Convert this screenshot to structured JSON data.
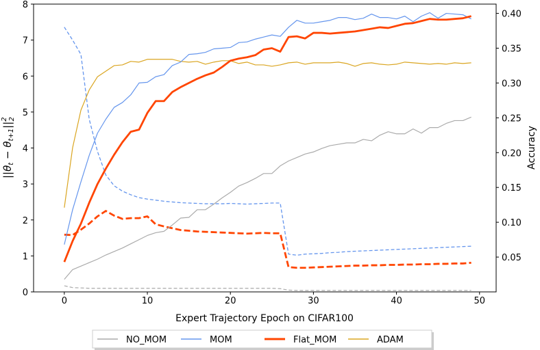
{
  "chart_data": {
    "type": "line",
    "xlabel": "Expert Trajectory Epoch on CIFAR100",
    "ylabel_left": "||θ_t − θ_{t+1}||²₂",
    "ylabel_right": "Accuracy",
    "xlim": [
      -3.7,
      52
    ],
    "ylim_left": [
      0,
      8
    ],
    "ylim_right": [
      0.0,
      0.4133
    ],
    "xticks": [
      0,
      10,
      20,
      30,
      40,
      50
    ],
    "yticks_left": [
      0,
      1,
      2,
      3,
      4,
      5,
      6,
      7,
      8
    ],
    "yticks_right": [
      0.05,
      0.1,
      0.15,
      0.2,
      0.25,
      0.3,
      0.35,
      0.4
    ],
    "legend": [
      "NO_MOM",
      "MOM",
      "Flat_MOM",
      "ADAM"
    ],
    "colors": {
      "NO_MOM": "#aaaaaa",
      "MOM": "#6495ed",
      "Flat_MOM": "#ff4500",
      "ADAM": "#daa520"
    },
    "accuracy_series": [
      {
        "name": "NO_MOM",
        "axis": "right",
        "values": [
          0.018,
          0.032,
          0.037,
          0.042,
          0.047,
          0.053,
          0.058,
          0.063,
          0.069,
          0.075,
          0.081,
          0.085,
          0.087,
          0.096,
          0.106,
          0.107,
          0.118,
          0.118,
          0.126,
          0.135,
          0.143,
          0.152,
          0.157,
          0.163,
          0.17,
          0.17,
          0.181,
          0.188,
          0.193,
          0.198,
          0.201,
          0.206,
          0.21,
          0.212,
          0.214,
          0.214,
          0.219,
          0.217,
          0.225,
          0.23,
          0.227,
          0.227,
          0.234,
          0.228,
          0.236,
          0.236,
          0.242,
          0.246,
          0.246,
          0.251
        ]
      },
      {
        "name": "MOM",
        "axis": "right",
        "values": [
          0.068,
          0.118,
          0.158,
          0.196,
          0.228,
          0.248,
          0.265,
          0.272,
          0.283,
          0.3,
          0.301,
          0.309,
          0.312,
          0.325,
          0.33,
          0.341,
          0.342,
          0.344,
          0.349,
          0.35,
          0.351,
          0.358,
          0.359,
          0.363,
          0.366,
          0.369,
          0.367,
          0.38,
          0.39,
          0.386,
          0.386,
          0.388,
          0.39,
          0.394,
          0.394,
          0.391,
          0.393,
          0.399,
          0.394,
          0.394,
          0.392,
          0.396,
          0.388,
          0.396,
          0.401,
          0.393,
          0.4,
          0.399,
          0.398,
          0.392
        ]
      },
      {
        "name": "Flat_MOM",
        "axis": "right",
        "values": [
          0.043,
          0.073,
          0.098,
          0.128,
          0.155,
          0.177,
          0.197,
          0.215,
          0.23,
          0.233,
          0.257,
          0.274,
          0.274,
          0.287,
          0.294,
          0.3,
          0.306,
          0.311,
          0.315,
          0.323,
          0.332,
          0.335,
          0.337,
          0.34,
          0.348,
          0.35,
          0.345,
          0.366,
          0.367,
          0.364,
          0.372,
          0.372,
          0.371,
          0.372,
          0.373,
          0.374,
          0.376,
          0.378,
          0.38,
          0.379,
          0.382,
          0.385,
          0.386,
          0.389,
          0.392,
          0.391,
          0.391,
          0.392,
          0.393,
          0.396
        ]
      },
      {
        "name": "ADAM",
        "axis": "right",
        "values": [
          0.121,
          0.207,
          0.261,
          0.29,
          0.309,
          0.317,
          0.325,
          0.326,
          0.331,
          0.33,
          0.334,
          0.334,
          0.334,
          0.334,
          0.331,
          0.33,
          0.331,
          0.327,
          0.33,
          0.332,
          0.332,
          0.328,
          0.33,
          0.326,
          0.326,
          0.324,
          0.326,
          0.329,
          0.33,
          0.327,
          0.329,
          0.329,
          0.329,
          0.33,
          0.328,
          0.324,
          0.328,
          0.329,
          0.327,
          0.326,
          0.327,
          0.33,
          0.329,
          0.328,
          0.327,
          0.328,
          0.327,
          0.329,
          0.328,
          0.329
        ]
      }
    ],
    "norm_series": [
      {
        "name": "NO_MOM",
        "axis": "left",
        "style": "dashed",
        "values": [
          0.17,
          0.12,
          0.11,
          0.1,
          0.1,
          0.1,
          0.1,
          0.1,
          0.1,
          0.1,
          0.1,
          0.1,
          0.1,
          0.1,
          0.1,
          0.1,
          0.1,
          0.1,
          0.1,
          0.1,
          0.1,
          0.1,
          0.1,
          0.1,
          0.1,
          0.1,
          0.09,
          0.05,
          0.04,
          0.04,
          0.04,
          0.04,
          0.04,
          0.04,
          0.04,
          0.04,
          0.04,
          0.04,
          0.04,
          0.04,
          0.04,
          0.04,
          0.04,
          0.04,
          0.04,
          0.04,
          0.04,
          0.04,
          0.04,
          0.04
        ]
      },
      {
        "name": "MOM",
        "axis": "left",
        "style": "dashed",
        "values": [
          7.36,
          7.0,
          6.6,
          4.8,
          3.9,
          3.25,
          2.95,
          2.8,
          2.7,
          2.62,
          2.58,
          2.55,
          2.52,
          2.5,
          2.48,
          2.47,
          2.46,
          2.45,
          2.45,
          2.45,
          2.46,
          2.45,
          2.44,
          2.45,
          2.46,
          2.47,
          2.47,
          1.05,
          1.02,
          1.05,
          1.06,
          1.07,
          1.09,
          1.1,
          1.12,
          1.13,
          1.14,
          1.15,
          1.16,
          1.17,
          1.18,
          1.19,
          1.2,
          1.21,
          1.22,
          1.23,
          1.24,
          1.25,
          1.26,
          1.27
        ]
      },
      {
        "name": "Flat_MOM",
        "axis": "left",
        "style": "dashed",
        "values": [
          1.59,
          1.58,
          1.73,
          1.9,
          2.1,
          2.25,
          2.12,
          2.03,
          2.05,
          2.05,
          2.1,
          1.88,
          1.82,
          1.77,
          1.72,
          1.7,
          1.68,
          1.67,
          1.66,
          1.65,
          1.64,
          1.63,
          1.62,
          1.63,
          1.64,
          1.63,
          1.63,
          0.69,
          0.67,
          0.67,
          0.68,
          0.69,
          0.7,
          0.71,
          0.72,
          0.73,
          0.73,
          0.74,
          0.74,
          0.75,
          0.75,
          0.76,
          0.76,
          0.77,
          0.77,
          0.78,
          0.78,
          0.79,
          0.79,
          0.81
        ]
      }
    ]
  }
}
